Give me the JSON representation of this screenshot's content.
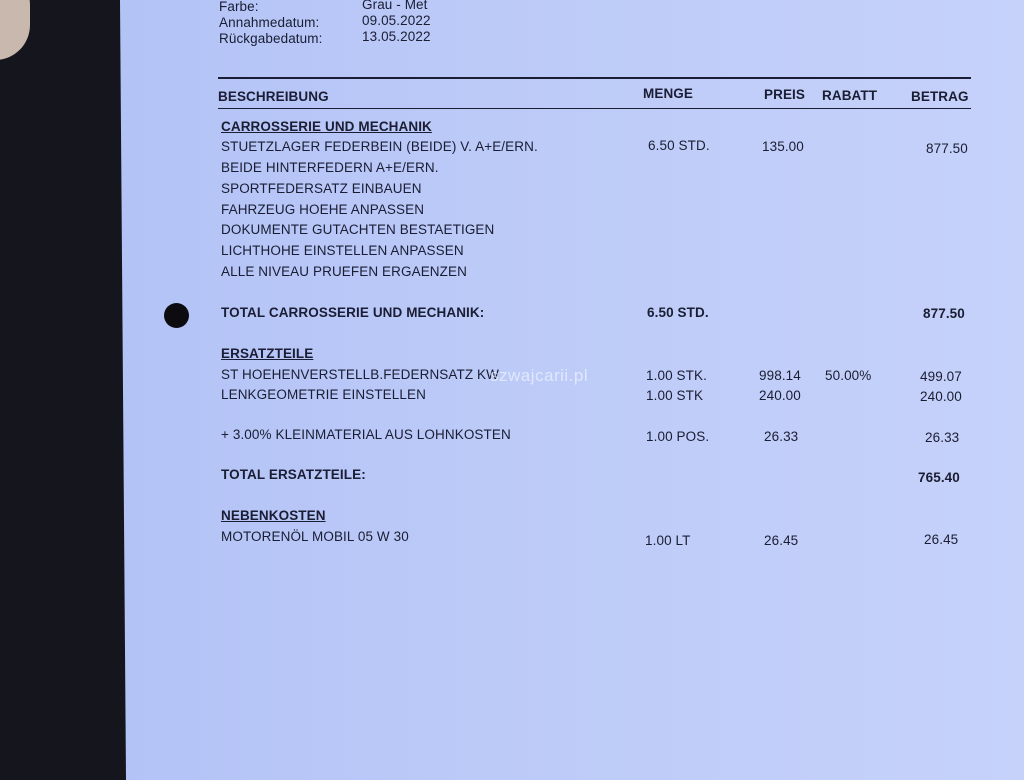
{
  "header": {
    "fields": [
      {
        "label": "Farbe:",
        "value": "Grau - Met"
      },
      {
        "label": "Annahmedatum:",
        "value": "09.05.2022"
      },
      {
        "label": "Rückgabedatum:",
        "value": "13.05.2022"
      }
    ]
  },
  "table": {
    "columns": {
      "description": "BESCHREIBUNG",
      "quantity": "MENGE",
      "price": "PREIS",
      "discount": "RABATT",
      "amount": "BETRAG"
    },
    "sections": [
      {
        "title": "CARROSSERIE UND MECHANIK",
        "rows": [
          {
            "description": "STUETZLAGER FEDERBEIN (BEIDE) V. A+E/ERN.",
            "quantity": "6.50 STD.",
            "price": "135.00",
            "discount": "",
            "amount": "877.50"
          },
          {
            "description": "BEIDE HINTERFEDERN A+E/ERN."
          },
          {
            "description": "SPORTFEDERSATZ EINBAUEN"
          },
          {
            "description": "FAHRZEUG HOEHE ANPASSEN"
          },
          {
            "description": "DOKUMENTE GUTACHTEN BESTAETIGEN"
          },
          {
            "description": "LICHTHOHE EINSTELLEN ANPASSEN"
          },
          {
            "description": "ALLE NIVEAU PRUEFEN ERGAENZEN"
          }
        ],
        "total": {
          "label": "TOTAL CARROSSERIE UND MECHANIK:",
          "quantity": "6.50 STD.",
          "amount": "877.50"
        }
      },
      {
        "title": "ERSATZTEILE",
        "rows": [
          {
            "description": "ST HOEHENVERSTELLB.FEDERNSATZ KW",
            "quantity": "1.00 STK.",
            "price": "998.14",
            "discount": "50.00%",
            "amount": "499.07"
          },
          {
            "description": "LENKGEOMETRIE EINSTELLEN",
            "quantity": "1.00 STK",
            "price": "240.00",
            "discount": "",
            "amount": "240.00"
          },
          {
            "description": "+ 3.00% KLEINMATERIAL AUS LOHNKOSTEN",
            "quantity": "1.00 POS.",
            "price": "26.33",
            "discount": "",
            "amount": "26.33"
          }
        ],
        "total": {
          "label": "TOTAL ERSATZTEILE:",
          "amount": "765.40"
        }
      },
      {
        "title": "NEBENKOSTEN",
        "rows": [
          {
            "description": "MOTORENÖL MOBIL 05 W 30",
            "quantity": "1.00 LT",
            "price": "26.45",
            "discount": "",
            "amount": "26.45"
          }
        ]
      }
    ]
  },
  "watermark": "szwajcarii.pl",
  "colors": {
    "paper": "#bccaf8",
    "text": "#1a1d33",
    "background": "#15161d"
  }
}
